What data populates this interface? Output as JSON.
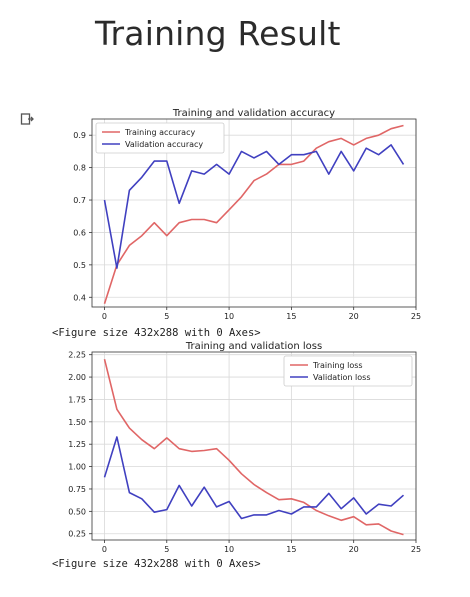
{
  "page": {
    "title": "Training Result"
  },
  "output_icon": "output-cell-icon",
  "captions": [
    "<Figure size 432x288 with 0 Axes>",
    "<Figure size 432x288 with 0 Axes>"
  ],
  "chart_data": [
    {
      "type": "line",
      "title": "Training and validation accuracy",
      "xlabel": "",
      "ylabel": "",
      "xlim": [
        -1,
        25
      ],
      "ylim": [
        0.37,
        0.95
      ],
      "xticks": [
        0,
        5,
        10,
        15,
        20,
        25
      ],
      "yticks": [
        0.4,
        0.5,
        0.6,
        0.7,
        0.8,
        0.9
      ],
      "ytick_labels": [
        "0.4",
        "0.5",
        "0.6",
        "0.7",
        "0.8",
        "0.9"
      ],
      "grid": true,
      "legend": "top-left",
      "x": [
        0,
        1,
        2,
        3,
        4,
        5,
        6,
        7,
        8,
        9,
        10,
        11,
        12,
        13,
        14,
        15,
        16,
        17,
        18,
        19,
        20,
        21,
        22,
        23,
        24
      ],
      "series": [
        {
          "name": "Training accuracy",
          "color": "#e06666",
          "values": [
            0.38,
            0.5,
            0.56,
            0.59,
            0.63,
            0.59,
            0.63,
            0.64,
            0.64,
            0.63,
            0.67,
            0.71,
            0.76,
            0.78,
            0.81,
            0.81,
            0.82,
            0.86,
            0.88,
            0.89,
            0.87,
            0.89,
            0.9,
            0.92,
            0.93
          ]
        },
        {
          "name": "Validation accuracy",
          "color": "#4040c0",
          "values": [
            0.7,
            0.49,
            0.73,
            0.77,
            0.82,
            0.82,
            0.69,
            0.79,
            0.78,
            0.81,
            0.78,
            0.85,
            0.83,
            0.85,
            0.81,
            0.84,
            0.84,
            0.85,
            0.78,
            0.85,
            0.79,
            0.86,
            0.84,
            0.87,
            0.81
          ]
        }
      ]
    },
    {
      "type": "line",
      "title": "Training and validation loss",
      "xlabel": "",
      "ylabel": "",
      "xlim": [
        -1,
        25
      ],
      "ylim": [
        0.18,
        2.28
      ],
      "xticks": [
        0,
        5,
        10,
        15,
        20,
        25
      ],
      "yticks": [
        0.25,
        0.5,
        0.75,
        1.0,
        1.25,
        1.5,
        1.75,
        2.0,
        2.25
      ],
      "ytick_labels": [
        "0.25",
        "0.50",
        "0.75",
        "1.00",
        "1.25",
        "1.50",
        "1.75",
        "2.00",
        "2.25"
      ],
      "grid": true,
      "legend": "top-right",
      "x": [
        0,
        1,
        2,
        3,
        4,
        5,
        6,
        7,
        8,
        9,
        10,
        11,
        12,
        13,
        14,
        15,
        16,
        17,
        18,
        19,
        20,
        21,
        22,
        23,
        24
      ],
      "series": [
        {
          "name": "Training loss",
          "color": "#e06666",
          "values": [
            2.2,
            1.64,
            1.43,
            1.3,
            1.2,
            1.32,
            1.2,
            1.17,
            1.18,
            1.2,
            1.07,
            0.92,
            0.8,
            0.71,
            0.63,
            0.64,
            0.6,
            0.51,
            0.45,
            0.4,
            0.44,
            0.35,
            0.36,
            0.28,
            0.24
          ]
        },
        {
          "name": "Validation loss",
          "color": "#4040c0",
          "values": [
            0.88,
            1.33,
            0.71,
            0.64,
            0.49,
            0.52,
            0.79,
            0.56,
            0.77,
            0.55,
            0.61,
            0.42,
            0.46,
            0.46,
            0.51,
            0.47,
            0.55,
            0.55,
            0.7,
            0.53,
            0.65,
            0.47,
            0.58,
            0.56,
            0.68
          ]
        }
      ]
    }
  ]
}
